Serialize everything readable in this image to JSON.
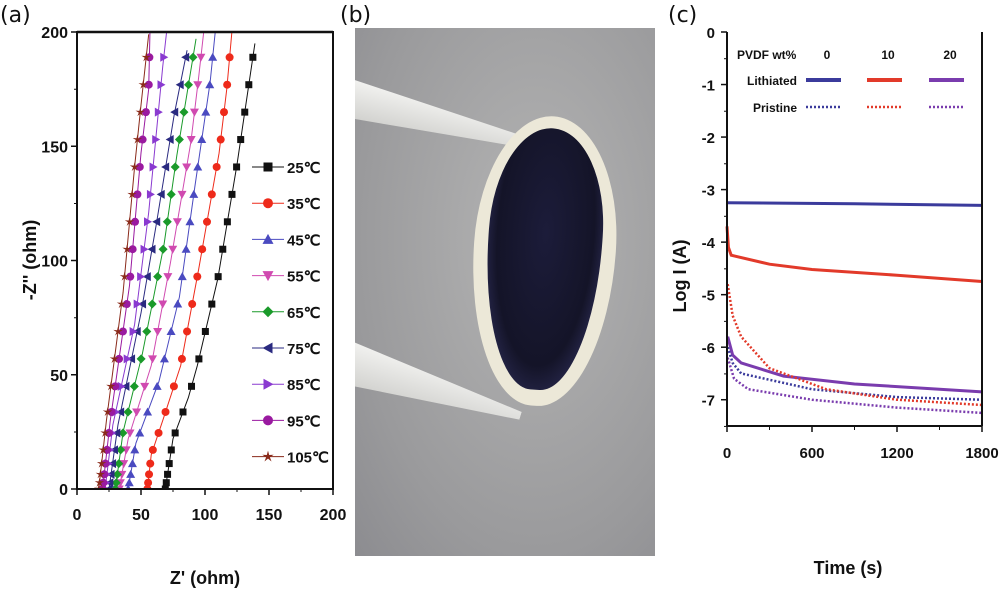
{
  "panels": {
    "a": "(a)",
    "b": "(b)",
    "c": "(c)"
  },
  "colors": {
    "blue": "#3b3b9c",
    "red": "#e23a2a",
    "purple": "#7a3cae"
  },
  "chart_data": [
    {
      "type": "scatter",
      "panel": "(a)",
      "xlabel": "Z' (ohm)",
      "ylabel": "-Z'' (ohm)",
      "xlim": [
        0,
        200
      ],
      "ylim": [
        0,
        200
      ],
      "xticks": [
        "0",
        "50",
        "100",
        "150",
        "200"
      ],
      "yticks": [
        "0",
        "50",
        "100",
        "150",
        "200"
      ],
      "legend_position": "right",
      "series": [
        {
          "name": "25℃",
          "color": "#111111",
          "marker": "square",
          "points": [
            [
              69,
              0
            ],
            [
              75,
              22
            ],
            [
              87,
              40
            ],
            [
              94,
              54
            ],
            [
              110,
              92
            ],
            [
              125,
              142
            ],
            [
              139,
              195
            ]
          ]
        },
        {
          "name": "35℃",
          "color": "#ee2a1a",
          "marker": "circle",
          "points": [
            [
              55,
              0
            ],
            [
              58,
              15
            ],
            [
              67,
              30
            ],
            [
              81,
              54
            ],
            [
              95,
              96
            ],
            [
              111,
              147
            ],
            [
              117,
              175
            ],
            [
              121,
              200
            ]
          ]
        },
        {
          "name": "45℃",
          "color": "#4a4ac0",
          "marker": "triangle-up",
          "points": [
            [
              40,
              0
            ],
            [
              46,
              20
            ],
            [
              64,
              47
            ],
            [
              80,
              84
            ],
            [
              92,
              132
            ],
            [
              104,
              178
            ],
            [
              108,
              200
            ]
          ]
        },
        {
          "name": "55℃",
          "color": "#d04ab0",
          "marker": "triangle-down",
          "points": [
            [
              33,
              0
            ],
            [
              40,
              22
            ],
            [
              58,
              54
            ],
            [
              73,
              99
            ],
            [
              89,
              152
            ],
            [
              95,
              180
            ],
            [
              99,
              200
            ]
          ]
        },
        {
          "name": "65℃",
          "color": "#1a9a2a",
          "marker": "diamond",
          "points": [
            [
              30,
              0
            ],
            [
              36,
              25
            ],
            [
              51,
              59
            ],
            [
              68,
              107
            ],
            [
              78,
              146
            ],
            [
              93,
              197
            ]
          ]
        },
        {
          "name": "75℃",
          "color": "#2a2a80",
          "marker": "triangle-left",
          "points": [
            [
              25,
              0
            ],
            [
              32,
              28
            ],
            [
              50,
              77
            ],
            [
              62,
              116
            ],
            [
              76,
              164
            ],
            [
              86,
              192
            ]
          ]
        },
        {
          "name": "85℃",
          "color": "#8a3ad0",
          "marker": "triangle-right",
          "points": [
            [
              22,
              0
            ],
            [
              28,
              28
            ],
            [
              45,
              72
            ],
            [
              56,
              121
            ],
            [
              67,
              185
            ],
            [
              70,
              200
            ]
          ]
        },
        {
          "name": "95℃",
          "color": "#9a1aa0",
          "marker": "circle",
          "points": [
            [
              20,
              0
            ],
            [
              26,
              30
            ],
            [
              41,
              89
            ],
            [
              50,
              147
            ],
            [
              56,
              175
            ],
            [
              57,
              200
            ]
          ]
        },
        {
          "name": "105℃",
          "color": "#8a2a1a",
          "marker": "star",
          "points": [
            [
              17,
              0
            ],
            [
              23,
              30
            ],
            [
              36,
              86
            ],
            [
              45,
              141
            ],
            [
              50,
              168
            ],
            [
              56,
              199
            ]
          ]
        }
      ]
    },
    {
      "type": "line",
      "panel": "(c)",
      "xlabel": "Time (s)",
      "ylabel": "Log I  (A)",
      "xlim": [
        0,
        1800
      ],
      "ylim": [
        -7.5,
        0
      ],
      "xticks": [
        "0",
        "600",
        "1200",
        "1800"
      ],
      "yticks": [
        "0",
        "-1",
        "-2",
        "-3",
        "-4",
        "-5",
        "-6",
        "-7"
      ],
      "legend": {
        "header": "PVDF wt%",
        "columns": [
          "0",
          "10",
          "20"
        ],
        "rows": [
          "Lithiated",
          "Pristine"
        ],
        "position": "top"
      },
      "series": [
        {
          "name": "Lithiated 0",
          "color": "#3b3b9c",
          "style": "solid",
          "points": [
            [
              0,
              -3.25
            ],
            [
              900,
              -3.27
            ],
            [
              1800,
              -3.3
            ]
          ]
        },
        {
          "name": "Lithiated 10",
          "color": "#e23a2a",
          "style": "solid",
          "points": [
            [
              0,
              -3.7
            ],
            [
              10,
              -4.1
            ],
            [
              30,
              -4.25
            ],
            [
              300,
              -4.42
            ],
            [
              600,
              -4.52
            ],
            [
              1200,
              -4.63
            ],
            [
              1800,
              -4.75
            ]
          ]
        },
        {
          "name": "Lithiated 20",
          "color": "#7a3cae",
          "style": "solid",
          "points": [
            [
              5,
              -5.8
            ],
            [
              40,
              -6.15
            ],
            [
              100,
              -6.3
            ],
            [
              400,
              -6.55
            ],
            [
              900,
              -6.7
            ],
            [
              1800,
              -6.85
            ]
          ]
        },
        {
          "name": "Pristine 0",
          "color": "#3b3b9c",
          "style": "dotted",
          "points": [
            [
              5,
              -6.0
            ],
            [
              40,
              -6.3
            ],
            [
              100,
              -6.5
            ],
            [
              600,
              -6.8
            ],
            [
              1200,
              -6.95
            ],
            [
              1800,
              -7.0
            ]
          ]
        },
        {
          "name": "Pristine 10",
          "color": "#e23a2a",
          "style": "dotted",
          "points": [
            [
              5,
              -4.8
            ],
            [
              40,
              -5.4
            ],
            [
              100,
              -5.8
            ],
            [
              300,
              -6.4
            ],
            [
              700,
              -6.8
            ],
            [
              1200,
              -7.0
            ],
            [
              1800,
              -7.1
            ]
          ]
        },
        {
          "name": "Pristine 20",
          "color": "#7a3cae",
          "style": "dotted",
          "points": [
            [
              5,
              -6.2
            ],
            [
              50,
              -6.6
            ],
            [
              150,
              -6.8
            ],
            [
              600,
              -7.0
            ],
            [
              1200,
              -7.15
            ],
            [
              1800,
              -7.25
            ]
          ]
        }
      ]
    }
  ]
}
